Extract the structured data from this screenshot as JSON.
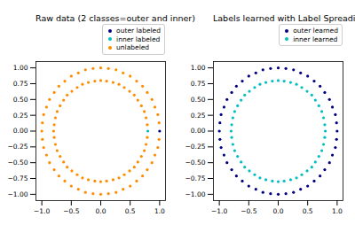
{
  "chart_data": [
    {
      "type": "scatter",
      "title": "Raw data (2 classes=outer and inner)",
      "legend": "upper right",
      "xlim": [
        -1.1,
        1.1
      ],
      "ylim": [
        -1.1,
        1.1
      ],
      "xticks": [
        {
          "value": -1,
          "label": "−1.0"
        },
        {
          "value": -0.5,
          "label": "−0.5"
        },
        {
          "value": 0,
          "label": "0.0"
        },
        {
          "value": 0.5,
          "label": "0.5"
        },
        {
          "value": 1,
          "label": "1.0"
        }
      ],
      "yticks": [
        {
          "value": -1,
          "label": "−1.00"
        },
        {
          "value": -0.75,
          "label": "−0.75"
        },
        {
          "value": -0.5,
          "label": "−0.50"
        },
        {
          "value": -0.25,
          "label": "−0.25"
        },
        {
          "value": 0,
          "label": "0.00"
        },
        {
          "value": 0.25,
          "label": "0.25"
        },
        {
          "value": 0.5,
          "label": "0.50"
        },
        {
          "value": 0.75,
          "label": "0.75"
        },
        {
          "value": 1,
          "label": "1.00"
        }
      ],
      "series": [
        {
          "name": "outer labeled",
          "color": "#000080",
          "marker": "point",
          "x": [
            1
          ],
          "y": [
            0
          ]
        },
        {
          "name": "inner labeled",
          "color": "#00bfbf",
          "marker": "point",
          "x": [
            0.8
          ],
          "y": [
            0
          ]
        },
        {
          "name": "unlabeled",
          "color": "#ff8c00",
          "marker": "point",
          "x": [
            0.99,
            0.97,
            0.92,
            0.87,
            0.79,
            0.71,
            0.61,
            0.5,
            0.38,
            0.26,
            0.13,
            0,
            -0.13,
            -0.26,
            -0.38,
            -0.5,
            -0.61,
            -0.71,
            -0.79,
            -0.87,
            -0.92,
            -0.97,
            -0.99,
            -1,
            -0.99,
            -0.97,
            -0.92,
            -0.87,
            -0.79,
            -0.71,
            -0.61,
            -0.5,
            -0.38,
            -0.26,
            -0.13,
            0,
            0.13,
            0.26,
            0.38,
            0.5,
            0.61,
            0.71,
            0.79,
            0.87,
            0.92,
            0.97,
            0.99,
            0.79,
            0.77,
            0.74,
            0.69,
            0.63,
            0.57,
            0.49,
            0.4,
            0.31,
            0.21,
            0.1,
            0,
            -0.1,
            -0.21,
            -0.31,
            -0.4,
            -0.49,
            -0.57,
            -0.63,
            -0.69,
            -0.74,
            -0.77,
            -0.79,
            -0.8,
            -0.79,
            -0.77,
            -0.74,
            -0.69,
            -0.63,
            -0.57,
            -0.49,
            -0.4,
            -0.31,
            -0.21,
            -0.1,
            0,
            0.1,
            0.21,
            0.31,
            0.4,
            0.49,
            0.57,
            0.63,
            0.69,
            0.74,
            0.77,
            0.79
          ],
          "y": [
            0.13,
            0.26,
            0.38,
            0.5,
            0.61,
            0.71,
            0.79,
            0.87,
            0.92,
            0.97,
            0.99,
            1,
            0.99,
            0.97,
            0.92,
            0.87,
            0.79,
            0.71,
            0.61,
            0.5,
            0.38,
            0.26,
            0.13,
            0,
            -0.13,
            -0.26,
            -0.38,
            -0.5,
            -0.61,
            -0.71,
            -0.79,
            -0.87,
            -0.92,
            -0.97,
            -0.99,
            -1,
            -0.99,
            -0.97,
            -0.92,
            -0.87,
            -0.79,
            -0.71,
            -0.61,
            -0.5,
            -0.38,
            -0.26,
            -0.13,
            0.1,
            0.21,
            0.31,
            0.4,
            0.49,
            0.57,
            0.63,
            0.69,
            0.74,
            0.77,
            0.79,
            0.8,
            0.79,
            0.77,
            0.74,
            0.69,
            0.63,
            0.57,
            0.49,
            0.4,
            0.31,
            0.21,
            0.1,
            0,
            -0.1,
            -0.21,
            -0.31,
            -0.4,
            -0.49,
            -0.57,
            -0.63,
            -0.69,
            -0.74,
            -0.77,
            -0.79,
            -0.8,
            -0.79,
            -0.77,
            -0.74,
            -0.69,
            -0.63,
            -0.57,
            -0.49,
            -0.4,
            -0.31,
            -0.21,
            -0.1
          ]
        }
      ]
    },
    {
      "type": "scatter",
      "title": "Labels learned with Label Spreading (KNN)",
      "legend": "upper right",
      "xlim": [
        -1.1,
        1.1
      ],
      "ylim": [
        -1.1,
        1.1
      ],
      "xticks": [
        {
          "value": -1,
          "label": "−1.0"
        },
        {
          "value": -0.5,
          "label": "−0.5"
        },
        {
          "value": 0,
          "label": "0.0"
        },
        {
          "value": 0.5,
          "label": "0.5"
        },
        {
          "value": 1,
          "label": "1.0"
        }
      ],
      "yticks": [
        {
          "value": -1,
          "label": "−1.00"
        },
        {
          "value": -0.75,
          "label": "−0.75"
        },
        {
          "value": -0.5,
          "label": "−0.50"
        },
        {
          "value": -0.25,
          "label": "−0.25"
        },
        {
          "value": 0,
          "label": "0.00"
        },
        {
          "value": 0.25,
          "label": "0.25"
        },
        {
          "value": 0.5,
          "label": "0.50"
        },
        {
          "value": 0.75,
          "label": "0.75"
        },
        {
          "value": 1,
          "label": "1.00"
        }
      ],
      "series": [
        {
          "name": "outer learned",
          "color": "#000080",
          "marker": "point",
          "x": [
            1,
            0.99,
            0.97,
            0.92,
            0.87,
            0.79,
            0.71,
            0.61,
            0.5,
            0.38,
            0.26,
            0.13,
            0,
            -0.13,
            -0.26,
            -0.38,
            -0.5,
            -0.61,
            -0.71,
            -0.79,
            -0.87,
            -0.92,
            -0.97,
            -0.99,
            -1,
            -0.99,
            -0.97,
            -0.92,
            -0.87,
            -0.79,
            -0.71,
            -0.61,
            -0.5,
            -0.38,
            -0.26,
            -0.13,
            0,
            0.13,
            0.26,
            0.38,
            0.5,
            0.61,
            0.71,
            0.79,
            0.87,
            0.92,
            0.97,
            0.99
          ],
          "y": [
            0,
            0.13,
            0.26,
            0.38,
            0.5,
            0.61,
            0.71,
            0.79,
            0.87,
            0.92,
            0.97,
            0.99,
            1,
            0.99,
            0.97,
            0.92,
            0.87,
            0.79,
            0.71,
            0.61,
            0.5,
            0.38,
            0.26,
            0.13,
            0,
            -0.13,
            -0.26,
            -0.38,
            -0.5,
            -0.61,
            -0.71,
            -0.79,
            -0.87,
            -0.92,
            -0.97,
            -0.99,
            -1,
            -0.99,
            -0.97,
            -0.92,
            -0.87,
            -0.79,
            -0.71,
            -0.61,
            -0.5,
            -0.38,
            -0.26,
            -0.13
          ]
        },
        {
          "name": "inner learned",
          "color": "#00bfbf",
          "marker": "point",
          "x": [
            0.8,
            0.79,
            0.77,
            0.74,
            0.69,
            0.63,
            0.57,
            0.49,
            0.4,
            0.31,
            0.21,
            0.1,
            0,
            -0.1,
            -0.21,
            -0.31,
            -0.4,
            -0.49,
            -0.57,
            -0.63,
            -0.69,
            -0.74,
            -0.77,
            -0.79,
            -0.8,
            -0.79,
            -0.77,
            -0.74,
            -0.69,
            -0.63,
            -0.57,
            -0.49,
            -0.4,
            -0.31,
            -0.21,
            -0.1,
            0,
            0.1,
            0.21,
            0.31,
            0.4,
            0.49,
            0.57,
            0.63,
            0.69,
            0.74,
            0.77,
            0.79
          ],
          "y": [
            0,
            0.1,
            0.21,
            0.31,
            0.4,
            0.49,
            0.57,
            0.63,
            0.69,
            0.74,
            0.77,
            0.79,
            0.8,
            0.79,
            0.77,
            0.74,
            0.69,
            0.63,
            0.57,
            0.49,
            0.4,
            0.31,
            0.21,
            0.1,
            0,
            -0.1,
            -0.21,
            -0.31,
            -0.4,
            -0.49,
            -0.57,
            -0.63,
            -0.69,
            -0.74,
            -0.77,
            -0.79,
            -0.8,
            -0.79,
            -0.77,
            -0.74,
            -0.69,
            -0.63,
            -0.57,
            -0.49,
            -0.4,
            -0.31,
            -0.21,
            -0.1
          ]
        }
      ]
    }
  ]
}
